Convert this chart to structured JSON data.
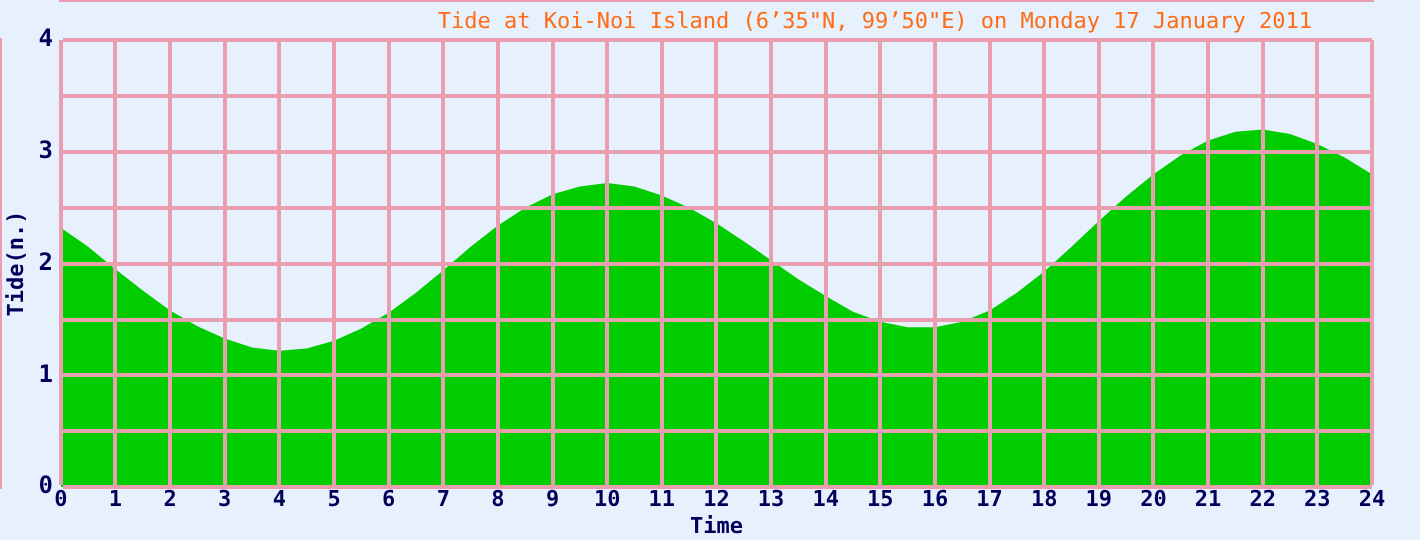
{
  "chart_data": {
    "type": "area",
    "title": "Tide at Koi-Noi Island (6’35\"N, 99’50\"E) on Monday 17 January 2011",
    "xlabel": "Time",
    "ylabel": "Tide(n.)",
    "x": [
      0,
      0.5,
      1,
      1.5,
      2,
      2.5,
      3,
      3.5,
      4,
      4.5,
      5,
      5.5,
      6,
      6.5,
      7,
      7.5,
      8,
      8.5,
      9,
      9.5,
      10,
      10.5,
      11,
      11.5,
      12,
      12.5,
      13,
      13.5,
      14,
      14.5,
      15,
      15.5,
      16,
      16.5,
      17,
      17.5,
      18,
      18.5,
      19,
      19.5,
      20,
      20.5,
      21,
      21.5,
      22,
      22.5,
      23,
      23.5,
      24
    ],
    "series": [
      {
        "color": "#00cc00",
        "values": [
          2.32,
          2.15,
          1.95,
          1.76,
          1.58,
          1.44,
          1.33,
          1.25,
          1.22,
          1.24,
          1.31,
          1.42,
          1.56,
          1.74,
          1.94,
          2.15,
          2.34,
          2.5,
          2.62,
          2.69,
          2.72,
          2.69,
          2.61,
          2.5,
          2.36,
          2.2,
          2.03,
          1.86,
          1.71,
          1.57,
          1.48,
          1.43,
          1.43,
          1.48,
          1.58,
          1.74,
          1.93,
          2.15,
          2.38,
          2.6,
          2.8,
          2.97,
          3.1,
          3.18,
          3.2,
          3.16,
          3.07,
          2.95,
          2.8
        ]
      }
    ],
    "xlim": [
      0,
      24
    ],
    "xticks": [
      0,
      1,
      2,
      3,
      4,
      5,
      6,
      7,
      8,
      9,
      10,
      11,
      12,
      13,
      14,
      15,
      16,
      17,
      18,
      19,
      20,
      21,
      22,
      23,
      24
    ],
    "ylim": [
      0,
      4
    ],
    "yticks": [
      0,
      {
        "value": 0.5,
        "label": null
      },
      1,
      {
        "value": 1.5,
        "label": null
      },
      2,
      {
        "value": 2.5,
        "label": null
      },
      3,
      {
        "value": 3.5,
        "label": null
      },
      4
    ],
    "grid": true,
    "legend": false
  }
}
